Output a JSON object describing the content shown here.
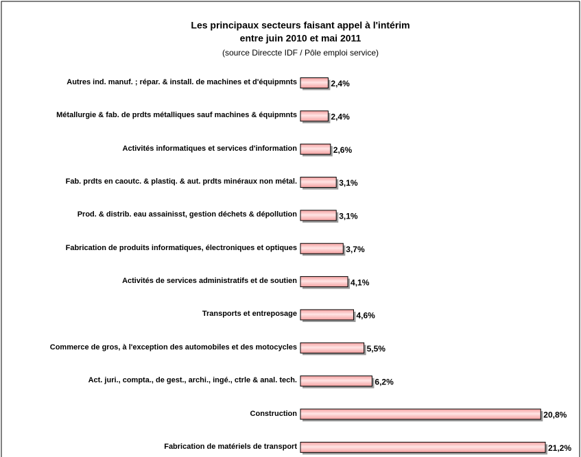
{
  "chart_data": {
    "type": "bar",
    "orientation": "horizontal",
    "title": [
      "Les principaux secteurs faisant appel à l'intérim",
      "entre juin 2010 et mai 2011"
    ],
    "subtitle": "(source Direccte IDF / Pôle emploi service)",
    "categories": [
      "Autres ind. manuf. ; répar. & install. de machines et d'équipmnts",
      "Métallurgie & fab. de prdts métalliques sauf machines & équipmnts",
      "Activités informatiques et services d'information",
      "Fab. prdts en caoutc. & plastiq. & aut. prdts minéraux non métal.",
      "Prod. & distrib. eau assainisst, gestion déchets & dépollution",
      "Fabrication de produits informatiques, électroniques et optiques",
      "Activités de services administratifs et de soutien",
      "Transports et entreposage",
      "Commerce de gros, à l'exception des automobiles et des motocycles",
      "Act. juri., compta., de gest., archi., ingé., ctrle & anal. tech.",
      "Construction",
      "Fabrication de matériels de transport"
    ],
    "values": [
      2.4,
      2.4,
      2.6,
      3.1,
      3.1,
      3.7,
      4.1,
      4.6,
      5.5,
      6.2,
      20.8,
      21.2
    ],
    "value_labels": [
      "2,4%",
      "2,4%",
      "2,6%",
      "3,1%",
      "3,1%",
      "3,7%",
      "4,1%",
      "4,6%",
      "5,5%",
      "6,2%",
      "20,8%",
      "21,2%"
    ],
    "color": "#f4a0a0"
  }
}
